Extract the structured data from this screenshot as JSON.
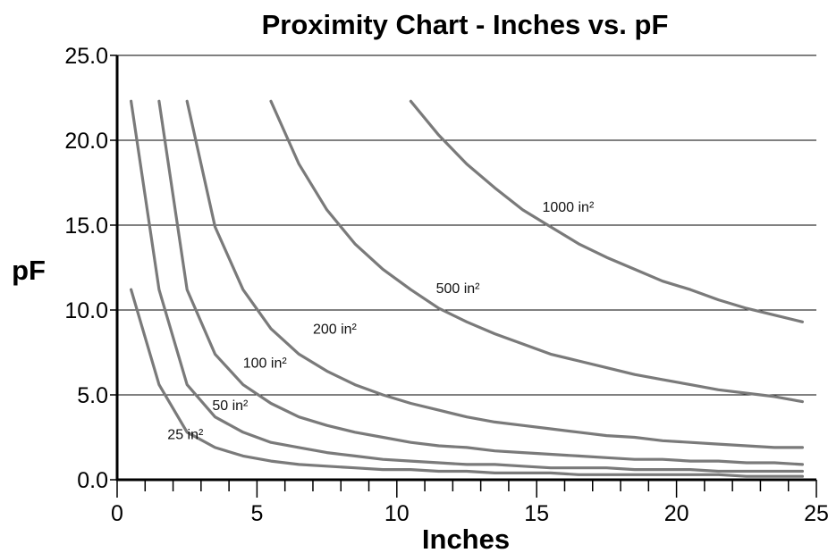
{
  "chart_data": {
    "type": "line",
    "title": "Proximity Chart - Inches vs. pF",
    "xlabel": "Inches",
    "ylabel": "pF",
    "xlim": [
      0,
      25
    ],
    "ylim": [
      0,
      25
    ],
    "x_ticks": [
      0,
      5,
      10,
      15,
      20,
      25
    ],
    "x_tick_labels": [
      "0",
      "5",
      "10",
      "15",
      "20",
      "25"
    ],
    "x_minor_step": 1,
    "y_ticks": [
      0,
      5,
      10,
      15,
      20,
      25
    ],
    "y_tick_labels": [
      "0.0",
      "5.0",
      "10.0",
      "15.0",
      "20.0",
      "25.0"
    ],
    "grid": "horizontal",
    "series": [
      {
        "name": "25 in²",
        "label_at": [
          1.8,
          2.4
        ],
        "points": [
          [
            0.5,
            11.2
          ],
          [
            1.5,
            5.6
          ],
          [
            2.5,
            2.8
          ],
          [
            3.5,
            1.9
          ],
          [
            4.5,
            1.4
          ],
          [
            5.5,
            1.1
          ],
          [
            6.5,
            0.9
          ],
          [
            7.5,
            0.8
          ],
          [
            8.5,
            0.7
          ],
          [
            9.5,
            0.6
          ],
          [
            10.5,
            0.6
          ],
          [
            11.5,
            0.5
          ],
          [
            12.5,
            0.5
          ],
          [
            13.5,
            0.4
          ],
          [
            14.5,
            0.4
          ],
          [
            15.5,
            0.4
          ],
          [
            16.5,
            0.3
          ],
          [
            17.5,
            0.3
          ],
          [
            18.5,
            0.3
          ],
          [
            19.5,
            0.3
          ],
          [
            20.5,
            0.3
          ],
          [
            21.5,
            0.3
          ],
          [
            22.5,
            0.2
          ],
          [
            23.5,
            0.2
          ],
          [
            24.5,
            0.2
          ]
        ]
      },
      {
        "name": "50 in²",
        "label_at": [
          3.4,
          4.1
        ],
        "points": [
          [
            0.5,
            22.3
          ],
          [
            1.5,
            11.2
          ],
          [
            2.5,
            5.6
          ],
          [
            3.5,
            3.7
          ],
          [
            4.5,
            2.8
          ],
          [
            5.5,
            2.2
          ],
          [
            6.5,
            1.9
          ],
          [
            7.5,
            1.6
          ],
          [
            8.5,
            1.4
          ],
          [
            9.5,
            1.2
          ],
          [
            10.5,
            1.1
          ],
          [
            11.5,
            1.0
          ],
          [
            12.5,
            0.9
          ],
          [
            13.5,
            0.9
          ],
          [
            14.5,
            0.8
          ],
          [
            15.5,
            0.7
          ],
          [
            16.5,
            0.7
          ],
          [
            17.5,
            0.7
          ],
          [
            18.5,
            0.6
          ],
          [
            19.5,
            0.6
          ],
          [
            20.5,
            0.6
          ],
          [
            21.5,
            0.5
          ],
          [
            22.5,
            0.5
          ],
          [
            23.5,
            0.5
          ],
          [
            24.5,
            0.5
          ]
        ]
      },
      {
        "name": "100 in²",
        "label_at": [
          4.5,
          6.6
        ],
        "points": [
          [
            1.5,
            22.3
          ],
          [
            2.5,
            11.2
          ],
          [
            3.5,
            7.4
          ],
          [
            4.5,
            5.6
          ],
          [
            5.5,
            4.5
          ],
          [
            6.5,
            3.7
          ],
          [
            7.5,
            3.2
          ],
          [
            8.5,
            2.8
          ],
          [
            9.5,
            2.5
          ],
          [
            10.5,
            2.2
          ],
          [
            11.5,
            2.0
          ],
          [
            12.5,
            1.9
          ],
          [
            13.5,
            1.7
          ],
          [
            14.5,
            1.6
          ],
          [
            15.5,
            1.5
          ],
          [
            16.5,
            1.4
          ],
          [
            17.5,
            1.3
          ],
          [
            18.5,
            1.2
          ],
          [
            19.5,
            1.2
          ],
          [
            20.5,
            1.1
          ],
          [
            21.5,
            1.1
          ],
          [
            22.5,
            1.0
          ],
          [
            23.5,
            1.0
          ],
          [
            24.5,
            0.9
          ]
        ]
      },
      {
        "name": "200 in²",
        "label_at": [
          7.0,
          8.6
        ],
        "points": [
          [
            2.5,
            22.3
          ],
          [
            3.5,
            14.9
          ],
          [
            4.5,
            11.2
          ],
          [
            5.5,
            8.9
          ],
          [
            6.5,
            7.4
          ],
          [
            7.5,
            6.4
          ],
          [
            8.5,
            5.6
          ],
          [
            9.5,
            5.0
          ],
          [
            10.5,
            4.5
          ],
          [
            11.5,
            4.1
          ],
          [
            12.5,
            3.7
          ],
          [
            13.5,
            3.4
          ],
          [
            14.5,
            3.2
          ],
          [
            15.5,
            3.0
          ],
          [
            16.5,
            2.8
          ],
          [
            17.5,
            2.6
          ],
          [
            18.5,
            2.5
          ],
          [
            19.5,
            2.3
          ],
          [
            20.5,
            2.2
          ],
          [
            21.5,
            2.1
          ],
          [
            22.5,
            2.0
          ],
          [
            23.5,
            1.9
          ],
          [
            24.5,
            1.9
          ]
        ]
      },
      {
        "name": "500 in²",
        "label_at": [
          11.4,
          11.0
        ],
        "points": [
          [
            5.5,
            22.3
          ],
          [
            6.5,
            18.6
          ],
          [
            7.5,
            15.9
          ],
          [
            8.5,
            13.9
          ],
          [
            9.5,
            12.4
          ],
          [
            10.5,
            11.2
          ],
          [
            11.5,
            10.1
          ],
          [
            12.5,
            9.3
          ],
          [
            13.5,
            8.6
          ],
          [
            14.5,
            8.0
          ],
          [
            15.5,
            7.4
          ],
          [
            16.5,
            7.0
          ],
          [
            17.5,
            6.6
          ],
          [
            18.5,
            6.2
          ],
          [
            19.5,
            5.9
          ],
          [
            20.5,
            5.6
          ],
          [
            21.5,
            5.3
          ],
          [
            22.5,
            5.1
          ],
          [
            23.5,
            4.9
          ],
          [
            24.5,
            4.6
          ]
        ]
      },
      {
        "name": "1000 in²",
        "label_at": [
          15.2,
          15.8
        ],
        "points": [
          [
            10.5,
            22.3
          ],
          [
            11.5,
            20.3
          ],
          [
            12.5,
            18.6
          ],
          [
            13.5,
            17.2
          ],
          [
            14.5,
            15.9
          ],
          [
            15.5,
            14.9
          ],
          [
            16.5,
            13.9
          ],
          [
            17.5,
            13.1
          ],
          [
            18.5,
            12.4
          ],
          [
            19.5,
            11.7
          ],
          [
            20.5,
            11.2
          ],
          [
            21.5,
            10.6
          ],
          [
            22.5,
            10.1
          ],
          [
            23.5,
            9.7
          ],
          [
            24.5,
            9.3
          ]
        ]
      }
    ]
  }
}
